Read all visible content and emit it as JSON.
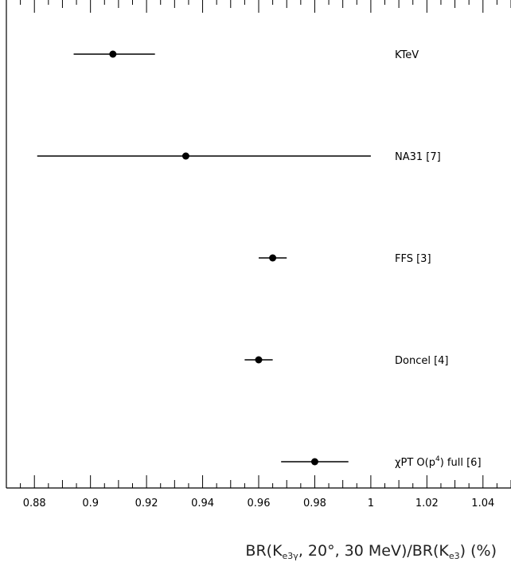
{
  "chart_data": {
    "type": "scatter",
    "orientation": "horizontal-errorbar",
    "xlim": [
      0.87,
      1.05
    ],
    "x_ticks": [
      "0.88",
      "0.9",
      "0.92",
      "0.94",
      "0.96",
      "0.98",
      "1",
      "1.02",
      "1.04"
    ],
    "xlabel": {
      "pre": "BR(K",
      "sub1": "e3γ",
      "mid": ", 20°, 30 MeV)/BR(K",
      "sub2": "e3",
      "post": ")  (%)"
    },
    "points": [
      {
        "label": "KTeV",
        "value": 0.908,
        "err_low": 0.894,
        "err_high": 0.923
      },
      {
        "label": "NA31 [7]",
        "value": 0.934,
        "err_low": 0.881,
        "err_high": 1.0
      },
      {
        "label": "FFS [3]",
        "value": 0.965,
        "err_low": 0.96,
        "err_high": 0.97
      },
      {
        "label": "Doncel [4]",
        "value": 0.96,
        "err_low": 0.955,
        "err_high": 0.965
      },
      {
        "label_parts": {
          "pre": "χPT O(p",
          "sup": "4",
          "post": ") full [6]"
        },
        "value": 0.98,
        "err_low": 0.968,
        "err_high": 0.992
      }
    ],
    "grid": false,
    "legend": "none"
  }
}
